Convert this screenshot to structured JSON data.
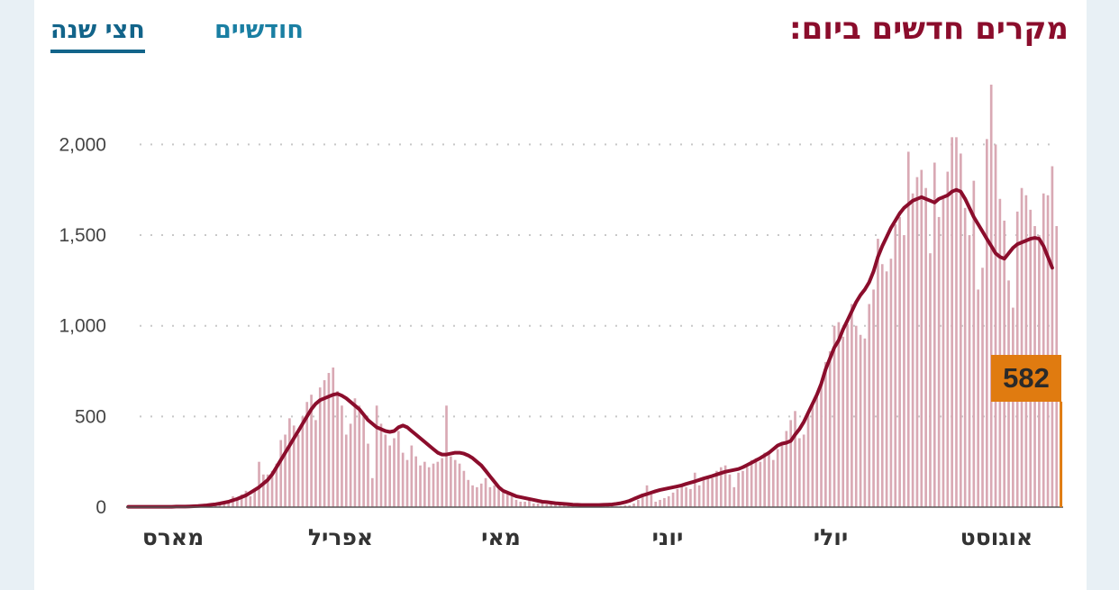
{
  "header": {
    "title": "מקרים חדשים ביום:",
    "tabs": [
      {
        "label": "חודשיים",
        "active": false
      },
      {
        "label": "חצי שנה",
        "active": true
      }
    ]
  },
  "colors": {
    "title": "#8b0d2c",
    "tab": "#1a7fa3",
    "tab_active": "#12648a",
    "bars": "#d9a9b4",
    "line": "#8b0d2c",
    "highlight": "#e07b10"
  },
  "chart_data": {
    "type": "bar",
    "title": "מקרים חדשים ביום:",
    "xlabel": "",
    "ylabel": "",
    "ylim": [
      0,
      2300
    ],
    "yticks": [
      0,
      500,
      1000,
      1500,
      2000
    ],
    "ytick_labels": [
      "0",
      "500",
      "1,000",
      "1,500",
      "2,000"
    ],
    "grid": true,
    "month_labels": [
      "מארס",
      "אפריל",
      "מאי",
      "יוני",
      "יולי",
      "אוגוסט"
    ],
    "series": [
      {
        "kind": "bar",
        "values": [
          2,
          0,
          1,
          0,
          1,
          0,
          2,
          0,
          2,
          1,
          3,
          0,
          2,
          4,
          5,
          3,
          6,
          8,
          10,
          7,
          14,
          12,
          20,
          30,
          60,
          45,
          70,
          90,
          60,
          100,
          250,
          180,
          180,
          200,
          240,
          370,
          400,
          490,
          450,
          400,
          500,
          580,
          620,
          480,
          660,
          700,
          740,
          770,
          640,
          560,
          400,
          460,
          600,
          560,
          500,
          350,
          160,
          560,
          460,
          400,
          340,
          380,
          420,
          300,
          260,
          340,
          280,
          230,
          250,
          220,
          240,
          250,
          270,
          560,
          280,
          260,
          240,
          200,
          150,
          120,
          110,
          130,
          160,
          110,
          120,
          100,
          80,
          70,
          60,
          40,
          30,
          30,
          40,
          20,
          20,
          20,
          15,
          15,
          15,
          10,
          10,
          10,
          10,
          5,
          10,
          5,
          5,
          10,
          5,
          5,
          5,
          5,
          3,
          5,
          10,
          10,
          20,
          40,
          60,
          120,
          70,
          30,
          40,
          50,
          60,
          80,
          100,
          120,
          110,
          100,
          190,
          120,
          150,
          160,
          160,
          200,
          220,
          230,
          180,
          110,
          190,
          200,
          220,
          260,
          270,
          250,
          300,
          310,
          260,
          320,
          350,
          420,
          480,
          530,
          380,
          400,
          520,
          580,
          620,
          680,
          800,
          860,
          1000,
          1020,
          940,
          1010,
          1120,
          1000,
          950,
          930,
          1120,
          1200,
          1480,
          1340,
          1300,
          1370,
          1560,
          1600,
          1500,
          1960,
          1730,
          1820,
          1860,
          1760,
          1400,
          1900,
          1600,
          1700,
          1850,
          2040,
          2040,
          1950,
          1650,
          1500,
          1800,
          1200,
          1320,
          2030,
          2330,
          2000,
          1700,
          1580,
          1250,
          1100,
          1630,
          1760,
          1720,
          1640,
          1550,
          1500,
          1730,
          1720,
          1880,
          1550,
          582
        ]
      },
      {
        "kind": "line",
        "name": "",
        "values": [
          2,
          2,
          2,
          2,
          2,
          2,
          2,
          2,
          2,
          2,
          2,
          3,
          3,
          3,
          4,
          5,
          6,
          8,
          10,
          13,
          16,
          20,
          25,
          30,
          38,
          45,
          55,
          65,
          80,
          95,
          110,
          130,
          150,
          180,
          220,
          260,
          300,
          340,
          380,
          420,
          460,
          500,
          540,
          570,
          590,
          600,
          610,
          620,
          625,
          615,
          600,
          580,
          560,
          540,
          510,
          480,
          460,
          440,
          430,
          420,
          415,
          420,
          440,
          450,
          440,
          420,
          400,
          380,
          360,
          340,
          320,
          300,
          290,
          290,
          295,
          300,
          300,
          295,
          285,
          270,
          250,
          230,
          200,
          170,
          140,
          110,
          90,
          80,
          70,
          60,
          55,
          50,
          45,
          40,
          35,
          30,
          28,
          25,
          22,
          20,
          18,
          16,
          14,
          13,
          12,
          12,
          12,
          12,
          12,
          13,
          14,
          15,
          18,
          22,
          28,
          35,
          45,
          55,
          65,
          72,
          80,
          88,
          95,
          100,
          105,
          110,
          115,
          120,
          128,
          135,
          142,
          150,
          158,
          165,
          172,
          180,
          188,
          195,
          200,
          205,
          210,
          220,
          232,
          245,
          258,
          270,
          285,
          300,
          320,
          340,
          350,
          355,
          365,
          400,
          430,
          470,
          520,
          570,
          620,
          680,
          760,
          820,
          880,
          920,
          980,
          1030,
          1080,
          1130,
          1170,
          1200,
          1240,
          1300,
          1380,
          1440,
          1490,
          1540,
          1580,
          1620,
          1650,
          1670,
          1690,
          1700,
          1710,
          1700,
          1690,
          1680,
          1700,
          1710,
          1720,
          1740,
          1750,
          1740,
          1700,
          1650,
          1600,
          1560,
          1520,
          1480,
          1440,
          1400,
          1380,
          1370,
          1400,
          1430,
          1450,
          1460,
          1470,
          1480,
          1485,
          1480,
          1440,
          1380,
          1320
        ]
      }
    ],
    "highlight": {
      "value": 582,
      "label": "582"
    }
  }
}
